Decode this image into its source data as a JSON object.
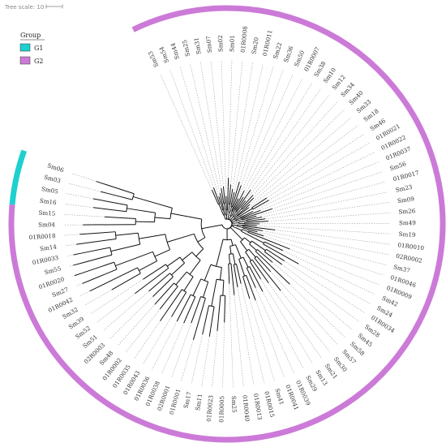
{
  "tree_scale": {
    "label": "Tree scale: 10"
  },
  "legend": {
    "title": "Group",
    "items": [
      {
        "label": "G1",
        "color": "#1fd0d0"
      },
      {
        "label": "G2",
        "color": "#cc7ad8"
      }
    ]
  },
  "leaves": [
    "Sm53",
    "Sm54",
    "Sm44",
    "Sm25",
    "Sm31",
    "Sm07",
    "Sm02",
    "Sm01",
    "01R0008",
    "Sm20",
    "01R0011",
    "Sm22",
    "Sm36",
    "Sm50",
    "01R0007",
    "Sm38",
    "Sm10",
    "Sm12",
    "Sm34",
    "Sm40",
    "Sm33",
    "Sm18",
    "Sm46",
    "01R0021",
    "01R0022",
    "01R0037",
    "Sm56",
    "01R0017",
    "Sm23",
    "Sm09",
    "Sm26",
    "Sm49",
    "Sm19",
    "01R0010",
    "02R0002",
    "Sm37",
    "01R0046",
    "01R0009",
    "Sm42",
    "Sm24",
    "01R0034",
    "Sm28",
    "Sm45",
    "Sm58",
    "Sm57",
    "Sm30",
    "Sm21",
    "Sm13",
    "Sm29",
    "01R0039",
    "01R0041",
    "Sm41",
    "01R0015",
    "01R0013",
    "01R0040",
    "Sm25",
    "01R0005",
    "01R0023",
    "Sm11",
    "Sm17",
    "01R0001",
    "02R0001",
    "01R0038",
    "01R0036",
    "01R0043",
    "01R0035",
    "01R0002",
    "Sm48",
    "02R0003",
    "Sm51",
    "Sm52",
    "Sm39",
    "Sm32",
    "01R0042",
    "Sm27",
    "01R0020",
    "Sm55",
    "01R0033",
    "Sm14",
    "01R0018",
    "Sm04",
    "Sm15",
    "Sm16",
    "Sm05",
    "Sm03",
    "Sm06"
  ],
  "groups": {
    "G1": [
      "Sm06",
      "Sm03",
      "Sm05",
      "Sm16"
    ],
    "G2": "all other leaves"
  }
}
